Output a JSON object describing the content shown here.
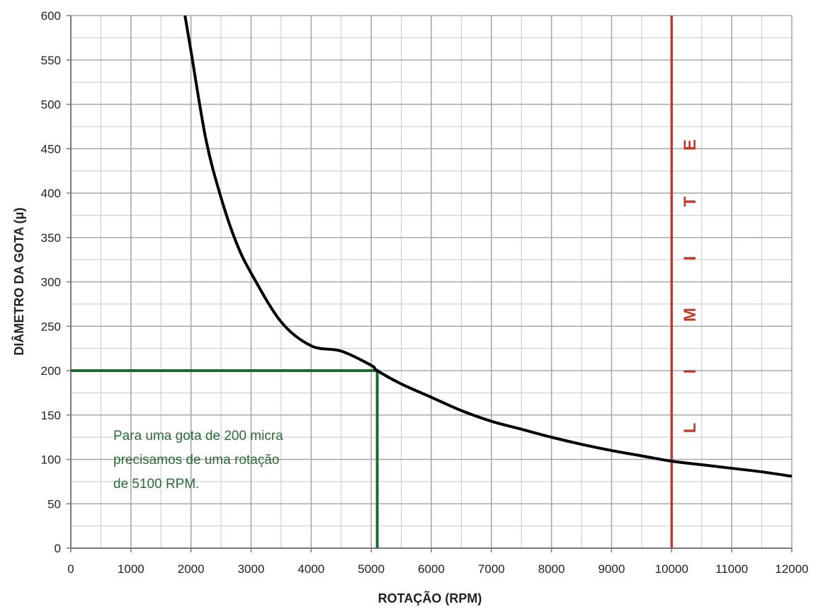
{
  "chart_data": {
    "type": "line",
    "xlabel": "ROTAÇÃO (RPM)",
    "ylabel": "DIÂMETRO DA GOTA (μ)",
    "xlim": [
      0,
      12000
    ],
    "ylim": [
      0,
      600
    ],
    "x_ticks": [
      "0",
      "1000",
      "2000",
      "3000",
      "4000",
      "5000",
      "6000",
      "7000",
      "8000",
      "9000",
      "10000",
      "11000",
      "12000"
    ],
    "y_ticks": [
      "0",
      "50",
      "100",
      "150",
      "200",
      "250",
      "300",
      "350",
      "400",
      "450",
      "500",
      "550",
      "600"
    ],
    "grid": true,
    "series": [
      {
        "x": [
          1900,
          2000,
          2250,
          2500,
          2750,
          3000,
          3500,
          4000,
          4500,
          5000,
          5100,
          5500,
          6000,
          6500,
          7000,
          7500,
          8000,
          8500,
          9000,
          9500,
          10000,
          10500,
          11000,
          11500,
          12000
        ],
        "values": [
          600,
          560,
          460,
          395,
          345,
          310,
          255,
          228,
          222,
          206,
          200,
          185,
          170,
          155,
          143,
          134,
          125,
          117,
          110,
          104,
          98,
          94,
          90,
          86,
          81
        ],
        "color": "#000000"
      }
    ],
    "reference_lines": {
      "marker_x": 5100,
      "marker_y": 200,
      "marker_color": "#1e6b30",
      "limit_x": 10000,
      "limit_color": "#c0392b"
    },
    "annotation": {
      "lines": [
        "Para uma gota de 200 micra",
        "precisamos de uma rotação",
        "de 5100 RPM."
      ],
      "color": "#2e6b3a"
    },
    "limit_label": [
      "L",
      "I",
      "M",
      "I",
      "T",
      "E"
    ]
  }
}
